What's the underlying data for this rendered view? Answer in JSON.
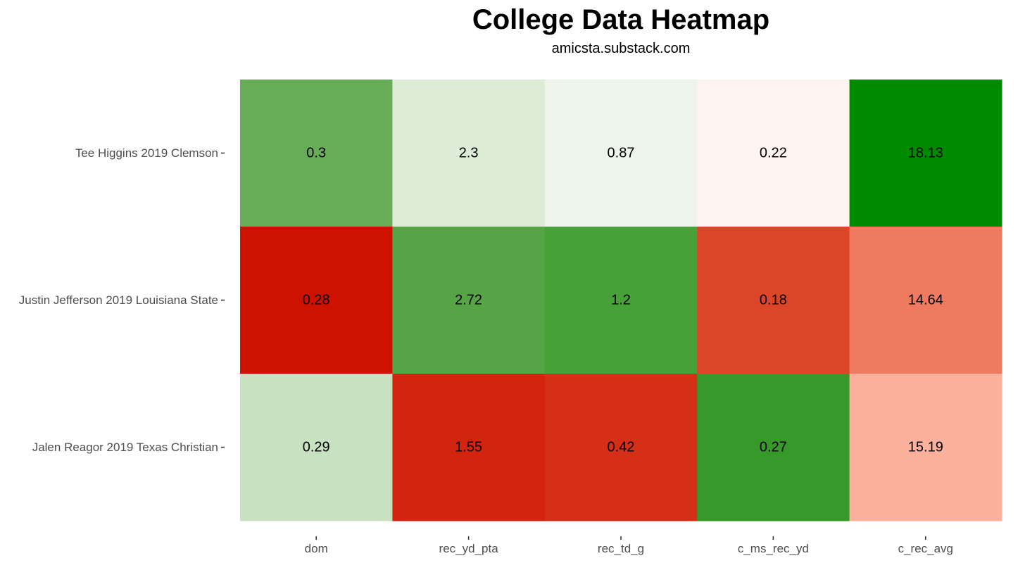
{
  "header": {
    "title": "College Data Heatmap",
    "subtitle": "amicsta.substack.com"
  },
  "chart_data": {
    "type": "heatmap",
    "title": "College Data Heatmap",
    "subtitle": "amicsta.substack.com",
    "x_categories": [
      "dom",
      "rec_yd_pta",
      "rec_td_g",
      "c_ms_rec_yd",
      "c_rec_avg"
    ],
    "y_categories": [
      "Tee Higgins 2019 Clemson",
      "Justin Jefferson 2019 Louisiana State",
      "Jalen Reagor 2019 Texas Christian"
    ],
    "values": [
      [
        0.3,
        2.3,
        0.87,
        0.22,
        18.13
      ],
      [
        0.28,
        2.72,
        1.2,
        0.18,
        14.64
      ],
      [
        0.29,
        1.55,
        0.42,
        0.27,
        15.19
      ]
    ],
    "value_labels": [
      [
        "0.3",
        "2.3",
        "0.87",
        "0.22",
        "18.13"
      ],
      [
        "0.28",
        "2.72",
        "1.2",
        "0.18",
        "14.64"
      ],
      [
        "0.29",
        "1.55",
        "0.42",
        "0.27",
        "15.19"
      ]
    ],
    "cell_colors": [
      [
        "#67ac57",
        "#ddecd7",
        "#edf4ea",
        "#fef3ef",
        "#008a00"
      ],
      [
        "#cd1300",
        "#57a446",
        "#47a038",
        "#dc4628",
        "#ee7a60"
      ],
      [
        "#c7e1c1",
        "#d32410",
        "#d52f18",
        "#36992a",
        "#fbb19b"
      ]
    ],
    "grid": false,
    "legend": "none"
  }
}
